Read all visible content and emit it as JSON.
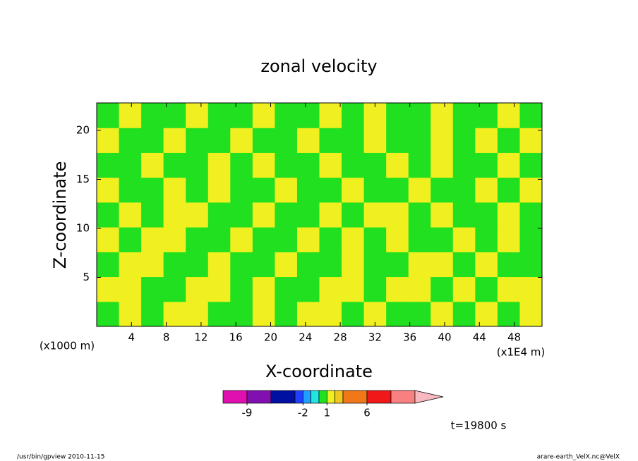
{
  "chart_data": {
    "type": "contour",
    "title": "zonal velocity",
    "x_label": "X-coordinate",
    "y_label": "Z-coordinate",
    "x_units": "(x1E4 m)",
    "y_units": "(x1000 m)",
    "xlim": [
      0,
      51.2
    ],
    "xticks": [
      4,
      8,
      12,
      16,
      20,
      24,
      28,
      32,
      36,
      40,
      44,
      48
    ],
    "ylim": [
      0,
      22.8
    ],
    "yticks": [
      5,
      10,
      15,
      20
    ],
    "levels": [
      -12,
      -9,
      -6,
      -3,
      -2,
      -1,
      0,
      1,
      2,
      3,
      6,
      9,
      12
    ],
    "colors": [
      "#e010b0",
      "#8010b0",
      "#0010a0",
      "#2040ff",
      "#20a0ff",
      "#20e8e0",
      "#20e020",
      "#f0f020",
      "#f0c820",
      "#f07818",
      "#f01818",
      "#f88080",
      "#f8b8c0"
    ],
    "colorbar_ticks": [
      -9,
      -2,
      1,
      6
    ],
    "z": [
      [
        0.5,
        1.5,
        0.5,
        1.5,
        1.5,
        0.5,
        0.5,
        1.5,
        0.5,
        1.5,
        1.5,
        0.5,
        1.5,
        0.5,
        0.5,
        1.5,
        0.5,
        1.5,
        0.5,
        1.5
      ],
      [
        1.5,
        1.5,
        0.5,
        0.5,
        1.5,
        1.5,
        0.5,
        1.5,
        0.5,
        0.5,
        1.5,
        1.5,
        0.5,
        1.5,
        1.5,
        0.5,
        1.5,
        0.5,
        1.5,
        1.5
      ],
      [
        0.5,
        1.5,
        1.5,
        0.5,
        0.5,
        1.5,
        0.5,
        0.5,
        1.5,
        0.5,
        0.5,
        1.5,
        0.5,
        0.5,
        1.5,
        1.5,
        0.5,
        1.5,
        0.5,
        0.5
      ],
      [
        1.5,
        0.5,
        1.5,
        1.5,
        0.5,
        0.5,
        1.5,
        0.5,
        0.5,
        1.5,
        0.5,
        1.5,
        0.5,
        1.5,
        0.5,
        0.5,
        1.5,
        0.5,
        1.5,
        0.5
      ],
      [
        0.5,
        1.5,
        0.5,
        1.5,
        1.5,
        0.5,
        0.5,
        1.5,
        0.5,
        0.5,
        1.5,
        0.5,
        1.5,
        1.5,
        0.5,
        1.5,
        0.5,
        0.5,
        1.5,
        0.5
      ],
      [
        1.5,
        0.5,
        0.5,
        1.5,
        0.5,
        1.5,
        0.5,
        0.5,
        1.5,
        0.5,
        0.5,
        1.5,
        0.5,
        0.5,
        1.5,
        0.5,
        0.5,
        1.5,
        0.5,
        1.5
      ],
      [
        0.5,
        0.5,
        1.5,
        0.5,
        0.5,
        1.5,
        0.5,
        1.5,
        0.5,
        0.5,
        1.5,
        0.5,
        0.5,
        1.5,
        0.5,
        1.5,
        0.5,
        0.5,
        1.5,
        0.5
      ],
      [
        1.5,
        0.5,
        0.5,
        1.5,
        0.5,
        0.5,
        1.5,
        0.5,
        0.5,
        1.5,
        0.5,
        0.5,
        1.5,
        0.5,
        0.5,
        1.5,
        0.5,
        1.5,
        0.5,
        1.5
      ],
      [
        0.5,
        1.5,
        0.5,
        0.5,
        1.5,
        0.5,
        0.5,
        1.5,
        0.5,
        0.5,
        1.5,
        0.5,
        1.5,
        0.5,
        0.5,
        1.5,
        0.5,
        0.5,
        1.5,
        0.5
      ]
    ],
    "time_label": "t=19800 s",
    "footer_left": "/usr/bin/gpview  2010-11-15",
    "footer_right": "arare-earth_VelX.nc@VelX"
  }
}
